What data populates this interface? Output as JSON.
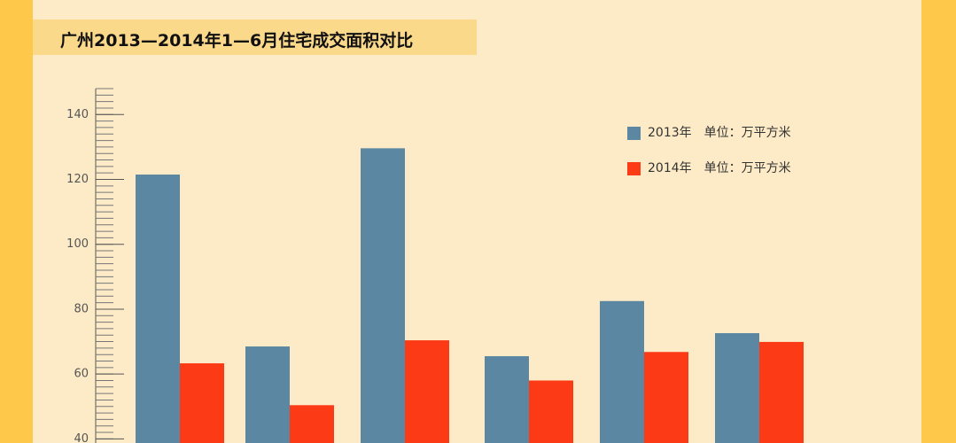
{
  "chart_data": {
    "type": "bar",
    "title": "广州2013—2014年1—6月住宅成交面积对比",
    "categories": [
      null,
      null,
      null,
      null,
      null,
      null
    ],
    "series": [
      {
        "name": "2013年　单位：万平方米",
        "color": "#5b87a2",
        "values": [
          121.5,
          68.5,
          129.6,
          65.5,
          82.5,
          72.6
        ]
      },
      {
        "name": "2014年　单位：万平方米",
        "color": "#fc3a15",
        "values": [
          63.3,
          50.4,
          70.4,
          58,
          66.8,
          69.9
        ]
      }
    ],
    "ylim": [
      38.6,
      148
    ],
    "yticks": [
      40,
      60,
      80,
      100,
      120,
      140
    ],
    "minor_ytick_step": 2
  }
}
